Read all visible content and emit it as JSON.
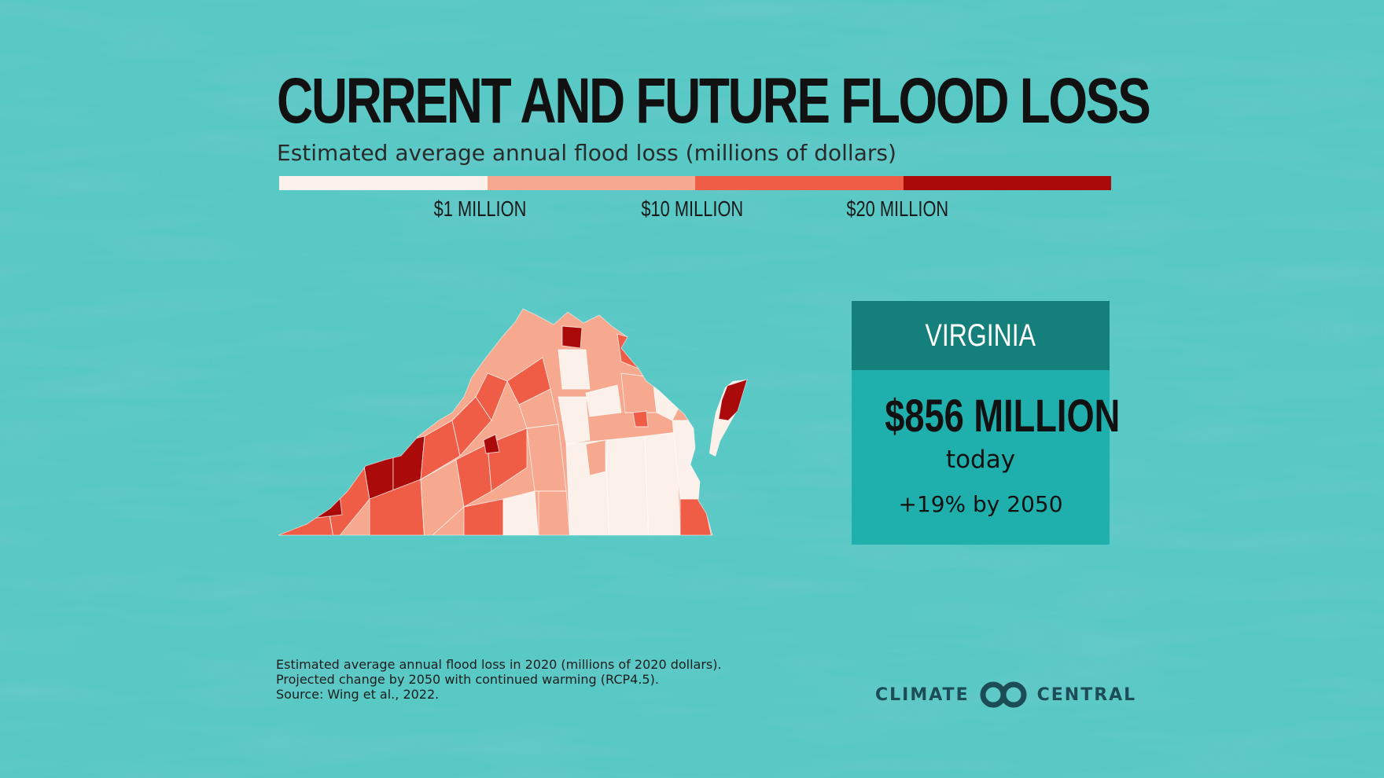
{
  "title": "CURRENT AND FUTURE FLOOD LOSS",
  "subtitle": "Estimated average annual flood loss (millions of dollars)",
  "legend": {
    "colors": [
      "#fbf1ea",
      "#f7a98f",
      "#ef5d47",
      "#ab0a0a"
    ],
    "ticks": [
      "$1 MILLION",
      "$10 MILLION",
      "$20 MILLION"
    ]
  },
  "state_box": {
    "name": "VIRGINIA",
    "value": "$856 MILLION",
    "when": "today",
    "change": "+19% by 2050",
    "header_color": "#157f7c",
    "body_color": "#1fb0ad"
  },
  "footnotes": [
    "Estimated average annual flood loss in 2020 (millions of 2020 dollars).",
    "Projected change by 2050 with continued warming (RCP4.5).",
    "Source: Wing et al., 2022."
  ],
  "logo": {
    "left": "CLIMATE",
    "right": "CENTRAL"
  }
}
